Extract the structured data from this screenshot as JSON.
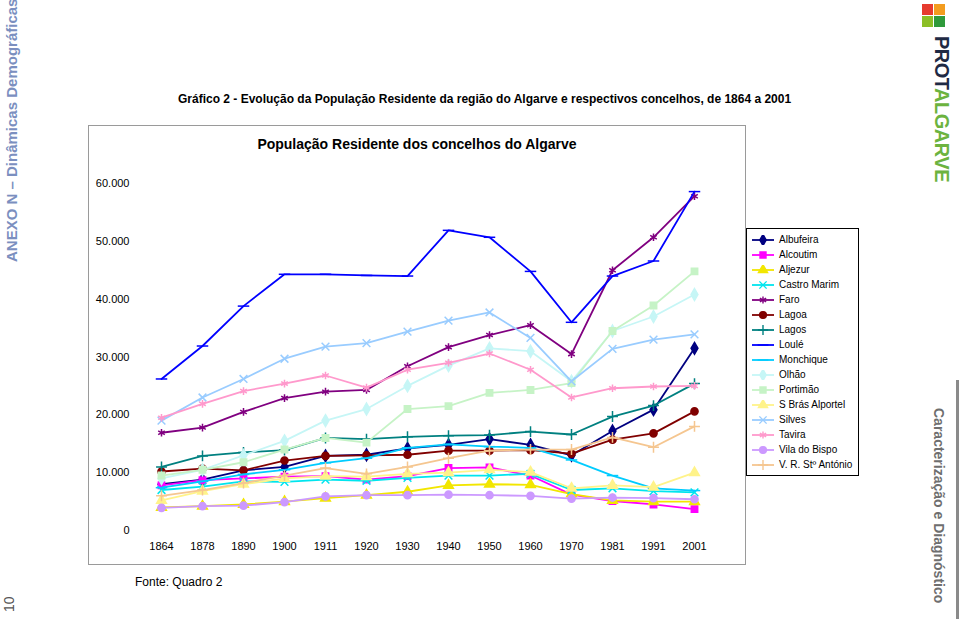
{
  "page": {
    "side_left": "ANEXO N – Dinâmicas Demográficas",
    "page_number": "10",
    "logo": [
      "PROT",
      "ALGARVE"
    ],
    "side_right": "Caracterização e Diagnóstico",
    "caption": "Gráfico 2 - Evolução da População Residente da região do Algarve  e respectivos concelhos, de 1864 a 2001",
    "source": "Fonte: Quadro 2"
  },
  "chart_data": {
    "type": "line",
    "title": "População Residente dos concelhos do Algarve",
    "categories": [
      "1864",
      "1878",
      "1890",
      "1900",
      "1911",
      "1920",
      "1930",
      "1940",
      "1950",
      "1960",
      "1970",
      "1981",
      "1991",
      "2001"
    ],
    "ylim": [
      0,
      60000
    ],
    "yticks": [
      0,
      {
        "value": 10000,
        "label": "10.000"
      },
      {
        "value": 20000,
        "label": "20.000"
      },
      {
        "value": 30000,
        "label": "30.000"
      },
      {
        "value": 40000,
        "label": "40.000"
      },
      {
        "value": 50000,
        "label": "50.000"
      },
      {
        "value": 60000,
        "label": "60.000"
      }
    ],
    "grid": false,
    "legend": "right",
    "series": [
      {
        "name": "Albufeira",
        "color": "#000080",
        "marker": "diamond",
        "values": [
          8000,
          8800,
          10400,
          11000,
          12900,
          13100,
          14200,
          14800,
          15800,
          14800,
          13000,
          17200,
          20900,
          31500
        ]
      },
      {
        "name": "Alcoutim",
        "color": "#ff00ff",
        "marker": "square",
        "values": [
          7800,
          8700,
          9000,
          9300,
          9400,
          8800,
          9400,
          10800,
          10900,
          9500,
          6200,
          5100,
          4500,
          3700
        ]
      },
      {
        "name": "Aljezur",
        "color": "#f2e600",
        "marker": "triangle",
        "values": [
          4000,
          4200,
          4500,
          5000,
          5600,
          6100,
          6700,
          7800,
          8000,
          7900,
          6300,
          5200,
          5000,
          5000
        ]
      },
      {
        "name": "Castro Marim",
        "color": "#00e5ee",
        "marker": "times",
        "values": [
          7000,
          7600,
          8500,
          8400,
          8800,
          8600,
          9100,
          9500,
          9500,
          9800,
          7000,
          7300,
          6800,
          6600
        ]
      },
      {
        "name": "Faro",
        "color": "#800080",
        "marker": "asterisk",
        "values": [
          16900,
          17800,
          20500,
          22900,
          24000,
          24300,
          28400,
          31700,
          33800,
          35500,
          30500,
          45000,
          50700,
          57800
        ]
      },
      {
        "name": "Lagoa",
        "color": "#800000",
        "marker": "circle",
        "values": [
          10200,
          10700,
          10400,
          12100,
          12900,
          13000,
          13100,
          13800,
          13800,
          13900,
          13300,
          15700,
          16800,
          20600
        ]
      },
      {
        "name": "Lagos",
        "color": "#008080",
        "marker": "plus",
        "values": [
          11000,
          12900,
          13500,
          13900,
          16000,
          15800,
          16200,
          16400,
          16500,
          17100,
          16600,
          19700,
          21600,
          25400
        ]
      },
      {
        "name": "Loulé",
        "color": "#0000ff",
        "marker": "dash",
        "values": [
          26200,
          31900,
          38800,
          44300,
          44300,
          44100,
          44000,
          51900,
          50700,
          44800,
          36000,
          44000,
          46600,
          58600
        ]
      },
      {
        "name": "Monchique",
        "color": "#00ccff",
        "marker": "dash",
        "values": [
          7400,
          8500,
          9700,
          10500,
          11700,
          12500,
          14300,
          14900,
          14500,
          14300,
          12200,
          9500,
          7300,
          6900
        ]
      },
      {
        "name": "Olhão",
        "color": "#c6f6f6",
        "marker": "diamond",
        "values": [
          9000,
          10500,
          13000,
          15500,
          19000,
          21000,
          25000,
          28500,
          31500,
          31000,
          25800,
          34500,
          37000,
          40800
        ]
      },
      {
        "name": "Portimão",
        "color": "#c6f3c6",
        "marker": "square",
        "values": [
          9500,
          10500,
          11800,
          14000,
          16000,
          15200,
          21000,
          21500,
          23800,
          24300,
          25500,
          34500,
          38900,
          44800
        ]
      },
      {
        "name": "S Brás Alportel",
        "color": "#fff38a",
        "marker": "triangle",
        "values": [
          5200,
          6800,
          8000,
          9000,
          9400,
          9300,
          9800,
          10000,
          10500,
          10100,
          7300,
          7800,
          7500,
          10000
        ]
      },
      {
        "name": "Silves",
        "color": "#99ccff",
        "marker": "times",
        "values": [
          19000,
          23000,
          26200,
          29700,
          31800,
          32400,
          34400,
          36300,
          37700,
          33300,
          25800,
          31400,
          33000,
          33900
        ]
      },
      {
        "name": "Tavira",
        "color": "#ff99cc",
        "marker": "asterisk",
        "values": [
          19500,
          21900,
          24100,
          25400,
          26800,
          24700,
          27800,
          29000,
          30600,
          27800,
          23000,
          24600,
          24900,
          25000
        ]
      },
      {
        "name": "Vila do Bispo",
        "color": "#cc99ff",
        "marker": "circle",
        "values": [
          3900,
          4200,
          4300,
          4900,
          5900,
          6100,
          6100,
          6200,
          6100,
          6000,
          5500,
          5700,
          5600,
          5400
        ]
      },
      {
        "name": "V. R. Stº António",
        "color": "#f5c690",
        "marker": "plus",
        "values": [
          6000,
          7000,
          8200,
          9500,
          10800,
          9800,
          11000,
          12500,
          13800,
          14000,
          14000,
          16100,
          14400,
          18000
        ]
      }
    ]
  }
}
